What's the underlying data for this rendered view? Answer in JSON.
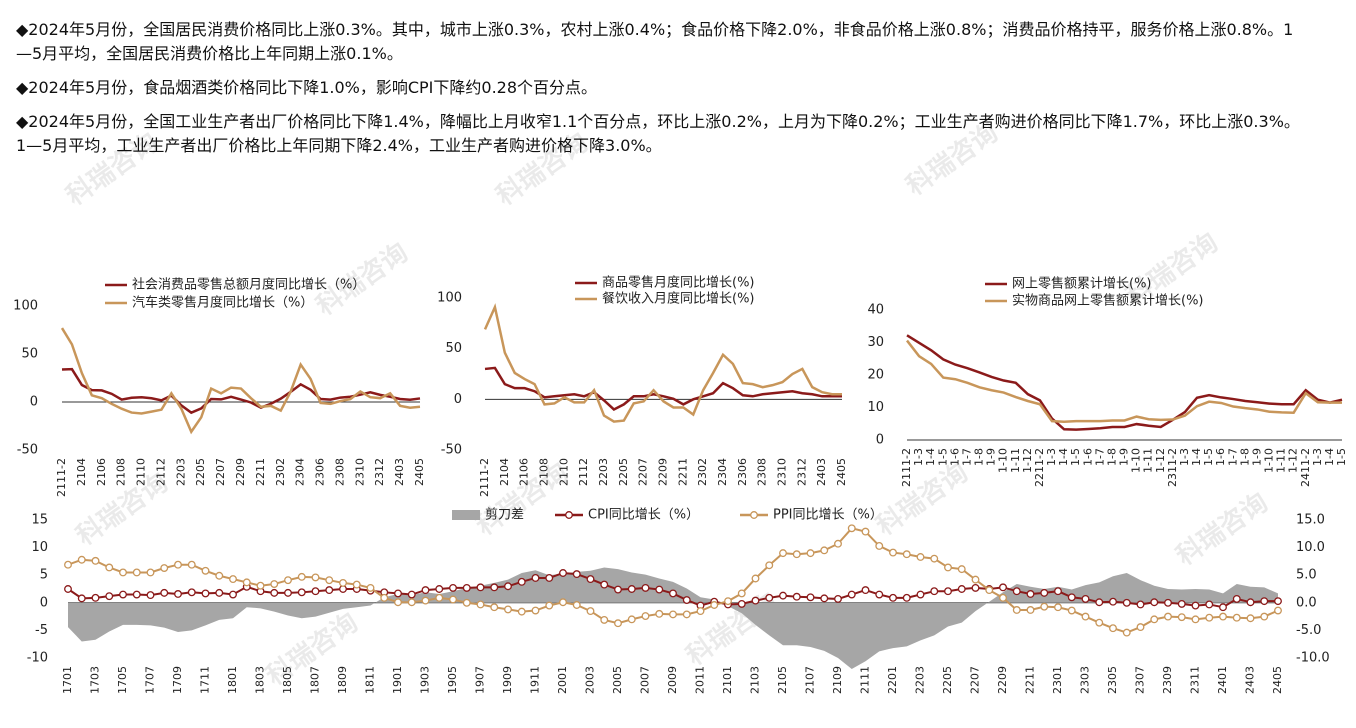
{
  "paragraphs": [
    "◆2024年5月份，全国居民消费价格同比上涨0.3%。其中，城市上涨0.3%，农村上涨0.4%；食品价格下降2.0%，非食品价格上涨0.8%；消费品价格持平，服务价格上涨0.8%。1—5月平均，全国居民消费价格比上年同期上涨0.1%。",
    "◆2024年5月份，食品烟酒类价格同比下降1.0%，影响CPI下降约0.28个百分点。",
    "◆2024年5月份，全国工业生产者出厂价格同比下降1.4%，降幅比上月收窄1.1个百分点，环比上涨0.2%，上月为下降0.2%；工业生产者购进价格同比下降1.7%，环比上涨0.3%。1—5月平均，工业生产者出厂价格比上年同期下降2.4%，工业生产者购进价格下降3.0%。"
  ],
  "watermark": "科瑞咨询",
  "chart_data": [
    {
      "type": "line",
      "categories": [
        "2111-2",
        null,
        "2104",
        null,
        "2106",
        null,
        "2108",
        null,
        "2110",
        null,
        "2112",
        null,
        "2203",
        null,
        "2205",
        null,
        "2207",
        null,
        "2209",
        null,
        "2211",
        null,
        "2302",
        null,
        "2304",
        null,
        "2306",
        null,
        "2308",
        null,
        "2310",
        null,
        "2312",
        null,
        "2403",
        null,
        "2405"
      ],
      "ylim": [
        -50,
        100
      ],
      "yticks": [
        -50,
        0,
        50,
        100
      ],
      "series": [
        {
          "name": "社会消费品零售总额月度同比增长（%）",
          "color": "#8b1a1a",
          "values": [
            33.8,
            34.2,
            17.7,
            12.4,
            12.1,
            8.5,
            2.5,
            4.4,
            4.9,
            3.9,
            1.7,
            6.7,
            -3.5,
            -11.1,
            -6.7,
            3.1,
            2.7,
            5.4,
            2.5,
            -0.5,
            -5.9,
            -1.8,
            3.5,
            10.6,
            18.4,
            12.7,
            3.1,
            2.5,
            4.6,
            5.5,
            7.6,
            10.1,
            7.4,
            5.5,
            3.1,
            2.3,
            3.7
          ]
        },
        {
          "name": "汽车类零售月度同比增长（%）",
          "color": "#c8965a",
          "values": [
            77,
            60,
            30,
            7,
            4,
            -2,
            -7,
            -11,
            -12,
            -10,
            -8,
            9,
            -7,
            -31,
            -16,
            14,
            9,
            15,
            14,
            4,
            -5,
            -4,
            -9,
            11,
            39,
            24,
            -1,
            -2,
            1,
            3,
            11,
            5,
            4,
            9,
            -4,
            -6,
            -5
          ]
        }
      ]
    },
    {
      "type": "line",
      "categories": [
        "2111-2",
        null,
        "2104",
        null,
        "2106",
        null,
        "2108",
        null,
        "2110",
        null,
        "2112",
        null,
        "2203",
        null,
        "2205",
        null,
        "2207",
        null,
        "2209",
        null,
        "2211",
        null,
        "2302",
        null,
        "2304",
        null,
        "2306",
        null,
        "2308",
        null,
        "2310",
        null,
        "2312",
        null,
        "2403",
        null,
        "2405"
      ],
      "ylim": [
        -50,
        100
      ],
      "yticks": [
        -50,
        0,
        50,
        100
      ],
      "series": [
        {
          "name": "商品零售月度同比增长(%)",
          "color": "#8b1a1a",
          "values": [
            30,
            31,
            15,
            11,
            11,
            8,
            2,
            3,
            4,
            5,
            3,
            7,
            -1,
            -10,
            -5,
            3,
            3,
            5,
            3,
            0.5,
            -5,
            0,
            3,
            6,
            16,
            11,
            4,
            3,
            5,
            6,
            7,
            8,
            6,
            5,
            3,
            3,
            3
          ]
        },
        {
          "name": "餐饮收入月度同比增长(%)",
          "color": "#c8965a",
          "values": [
            69,
            91,
            46,
            26,
            20,
            15,
            -5,
            -4,
            2,
            -3,
            -3,
            9,
            -16,
            -22,
            -21,
            -4,
            -2,
            9,
            -2,
            -8,
            -8,
            -15,
            9,
            26,
            44,
            35,
            16,
            15,
            12,
            14,
            17,
            25,
            30,
            12,
            7,
            5,
            5
          ]
        }
      ]
    },
    {
      "type": "line",
      "categories": [
        "2111-2",
        "1-3",
        "1-4",
        "1-5",
        "1-6",
        "1-7",
        "1-8",
        "1-9",
        "1-10",
        "1-11",
        "1-12",
        "2211-2",
        "1-3",
        "1-4",
        "1-5",
        "1-6",
        "1-7",
        "1-8",
        "1-9",
        "1-10",
        "1-11",
        "1-12",
        "2311-2",
        "1-3",
        "1-4",
        "1-5",
        "1-6",
        "1-7",
        "1-8",
        "1-9",
        "1-10",
        "1-11",
        "1-12",
        "2411-2",
        "1-3",
        "1-4",
        "1-5"
      ],
      "ylim": [
        0,
        40
      ],
      "yticks": [
        0,
        10,
        20,
        30,
        40
      ],
      "series": [
        {
          "name": "网上零售额累计增长(%)",
          "color": "#8b1a1a",
          "values": [
            32.2,
            29.9,
            27.6,
            24.8,
            23.2,
            22.1,
            20.8,
            19.4,
            18.3,
            17.6,
            14.1,
            12.2,
            6.6,
            3.3,
            3.2,
            3.4,
            3.6,
            4.0,
            4.0,
            4.9,
            4.4,
            4.0,
            6.2,
            8.6,
            13.0,
            13.8,
            13.1,
            12.6,
            12.0,
            11.6,
            11.2,
            11.0,
            11.0,
            15.3,
            12.4,
            11.5,
            12.4
          ]
        },
        {
          "name": "实物商品网上零售额累计增长(%)",
          "color": "#c8965a",
          "values": [
            30.6,
            25.8,
            23.4,
            19.2,
            18.7,
            17.6,
            16.2,
            15.3,
            14.6,
            13.2,
            12.0,
            11.0,
            5.8,
            5.6,
            5.8,
            5.8,
            5.8,
            6.0,
            6.0,
            7.2,
            6.4,
            6.2,
            6.3,
            7.5,
            10.4,
            11.8,
            11.4,
            10.3,
            9.8,
            9.4,
            8.7,
            8.5,
            8.4,
            14.4,
            11.6,
            11.5,
            11.5
          ]
        }
      ]
    },
    {
      "type": "line",
      "categories": [
        "1701",
        null,
        "1703",
        null,
        "1705",
        null,
        "1707",
        null,
        "1709",
        null,
        "1711",
        null,
        "1801",
        null,
        "1803",
        null,
        "1805",
        null,
        "1807",
        null,
        "1809",
        null,
        "1811",
        null,
        "1901",
        null,
        "1903",
        null,
        "1905",
        null,
        "1907",
        null,
        "1909",
        null,
        "1911",
        null,
        "2001",
        null,
        "2003",
        null,
        "2005",
        null,
        "2007",
        null,
        "2009",
        null,
        "2011",
        null,
        "2101",
        null,
        "2103",
        null,
        "2105",
        null,
        "2107",
        null,
        "2109",
        null,
        "2111",
        null,
        "2201",
        null,
        "2203",
        null,
        "2205",
        null,
        "2207",
        null,
        "2209",
        null,
        "2211",
        null,
        "2301",
        null,
        "2303",
        null,
        "2305",
        null,
        "2307",
        null,
        "2309",
        null,
        "2311",
        null,
        "2401",
        null,
        "2403",
        null,
        "2405"
      ],
      "ylim": [
        -10,
        15
      ],
      "yticks": [
        -10,
        -5,
        0,
        5,
        10,
        15
      ],
      "y2lim": [
        -10,
        15
      ],
      "y2ticks": [
        {
          "value": -10,
          "label": "-10.0"
        },
        {
          "value": -5,
          "label": "-5.0"
        },
        {
          "value": 0,
          "label": "0.0"
        },
        {
          "value": 5,
          "label": "5.0"
        },
        {
          "value": 10,
          "label": "10.0"
        },
        {
          "value": 15,
          "label": "15.0"
        }
      ],
      "series": [
        {
          "name": "剪刀差",
          "color": "#a6a6a6",
          "kind": "area",
          "values": [
            -4.4,
            -7.0,
            -6.7,
            -5.2,
            -4.0,
            -4.0,
            -4.1,
            -4.5,
            -5.3,
            -5.0,
            -4.1,
            -3.1,
            -2.8,
            -0.8,
            -1.0,
            -1.6,
            -2.3,
            -2.8,
            -2.5,
            -1.8,
            -1.1,
            -0.8,
            -0.5,
            1.0,
            1.6,
            1.4,
            1.9,
            1.6,
            2.1,
            2.7,
            3.1,
            3.6,
            4.2,
            5.4,
            5.9,
            5.0,
            5.3,
            5.6,
            5.8,
            6.4,
            6.1,
            5.5,
            5.1,
            4.4,
            3.8,
            2.6,
            1.0,
            0.6,
            -0.6,
            -1.9,
            -4.0,
            -5.9,
            -7.7,
            -7.7,
            -8.0,
            -8.7,
            -10.0,
            -12.0,
            -10.6,
            -8.8,
            -8.2,
            -7.9,
            -6.8,
            -5.9,
            -4.3,
            -3.6,
            -1.5,
            0.2,
            1.9,
            3.4,
            2.9,
            2.5,
            2.9,
            2.4,
            3.2,
            3.7,
            4.8,
            5.4,
            4.1,
            3.1,
            2.5,
            2.4,
            2.5,
            2.4,
            1.7,
            3.4,
            2.9,
            2.8,
            1.7
          ]
        },
        {
          "name": "CPI同比增长（%）",
          "color": "#8b1a1a",
          "axis": "y2",
          "marker": true,
          "values": [
            2.5,
            0.8,
            0.9,
            1.2,
            1.5,
            1.5,
            1.4,
            1.8,
            1.6,
            1.9,
            1.7,
            1.8,
            1.5,
            2.9,
            2.1,
            1.8,
            1.8,
            1.9,
            2.1,
            2.3,
            2.5,
            2.5,
            2.2,
            1.9,
            1.7,
            1.5,
            2.3,
            2.5,
            2.7,
            2.7,
            2.8,
            2.8,
            3.0,
            3.8,
            4.5,
            4.5,
            5.4,
            5.2,
            4.3,
            3.3,
            2.4,
            2.5,
            2.7,
            2.4,
            1.7,
            0.5,
            -0.5,
            0.2,
            -0.3,
            -0.2,
            0.4,
            0.9,
            1.3,
            1.1,
            1.0,
            0.8,
            0.7,
            1.5,
            2.3,
            1.5,
            0.9,
            0.9,
            1.5,
            2.1,
            2.1,
            2.5,
            2.7,
            2.5,
            2.8,
            2.1,
            1.6,
            1.8,
            2.1,
            1.0,
            0.7,
            0.1,
            0.2,
            0.0,
            -0.3,
            0.1,
            0.0,
            -0.2,
            -0.5,
            -0.3,
            -0.8,
            0.7,
            0.1,
            0.3,
            0.3
          ]
        },
        {
          "name": "PPI同比增长（%）",
          "color": "#c8965a",
          "axis": "y2",
          "marker": true,
          "values": [
            6.9,
            7.8,
            7.6,
            6.4,
            5.5,
            5.5,
            5.5,
            6.3,
            6.9,
            6.9,
            5.8,
            4.9,
            4.3,
            3.7,
            3.1,
            3.4,
            4.1,
            4.7,
            4.6,
            4.1,
            3.6,
            3.3,
            2.7,
            0.9,
            0.1,
            0.1,
            0.4,
            0.9,
            0.6,
            0.0,
            -0.3,
            -0.8,
            -1.2,
            -1.6,
            -1.4,
            -0.5,
            0.1,
            -0.4,
            -1.5,
            -3.1,
            -3.7,
            -3.0,
            -2.4,
            -2.0,
            -2.1,
            -2.1,
            -1.5,
            -0.4,
            0.3,
            1.7,
            4.4,
            6.8,
            9.0,
            8.8,
            9.0,
            9.5,
            10.7,
            13.5,
            12.9,
            10.3,
            9.1,
            8.8,
            8.3,
            8.0,
            6.4,
            6.1,
            4.2,
            2.3,
            0.9,
            -1.3,
            -1.3,
            -0.7,
            -0.8,
            -1.4,
            -2.5,
            -3.6,
            -4.6,
            -5.4,
            -4.4,
            -3.0,
            -2.5,
            -2.6,
            -3.0,
            -2.7,
            -2.5,
            -2.7,
            -2.8,
            -2.5,
            -1.4
          ]
        }
      ]
    }
  ]
}
